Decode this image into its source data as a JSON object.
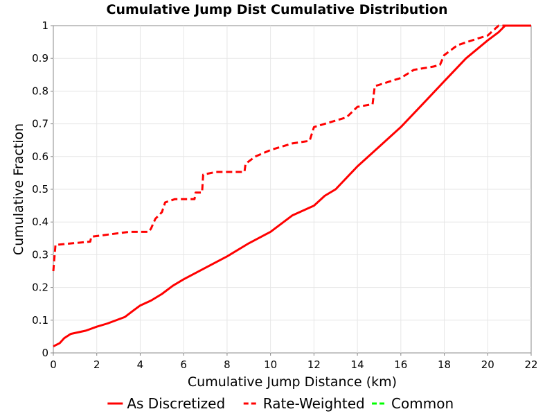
{
  "chart_data": {
    "type": "line",
    "title": "Cumulative Jump Dist Cumulative Distribution",
    "xlabel": "Cumulative Jump Distance (km)",
    "ylabel": "Cumulative Fraction",
    "xlim": [
      0,
      22
    ],
    "ylim": [
      0,
      1
    ],
    "x_ticks": [
      "0",
      "2",
      "4",
      "6",
      "8",
      "10",
      "12",
      "14",
      "16",
      "18",
      "20",
      "22"
    ],
    "y_ticks": [
      "0",
      "0.1",
      "0.2",
      "0.3",
      "0.4",
      "0.5",
      "0.6",
      "0.7",
      "0.8",
      "0.9",
      "1"
    ],
    "grid": true,
    "legend_position": "bottom",
    "series": [
      {
        "name": "As Discretized",
        "color": "#ff0000",
        "dash": "solid",
        "points": [
          [
            0,
            0.02
          ],
          [
            0.3,
            0.03
          ],
          [
            0.5,
            0.045
          ],
          [
            0.8,
            0.058
          ],
          [
            1.5,
            0.068
          ],
          [
            2,
            0.08
          ],
          [
            2.5,
            0.09
          ],
          [
            3.3,
            0.11
          ],
          [
            3.7,
            0.13
          ],
          [
            4,
            0.145
          ],
          [
            4.5,
            0.16
          ],
          [
            5,
            0.18
          ],
          [
            5.5,
            0.205
          ],
          [
            6,
            0.225
          ],
          [
            7,
            0.26
          ],
          [
            8,
            0.295
          ],
          [
            9,
            0.335
          ],
          [
            10,
            0.37
          ],
          [
            11,
            0.42
          ],
          [
            12,
            0.45
          ],
          [
            12.5,
            0.48
          ],
          [
            13,
            0.5
          ],
          [
            14,
            0.57
          ],
          [
            15,
            0.63
          ],
          [
            16,
            0.69
          ],
          [
            17,
            0.76
          ],
          [
            18,
            0.83
          ],
          [
            19,
            0.9
          ],
          [
            20,
            0.955
          ],
          [
            20.5,
            0.98
          ],
          [
            20.8,
            1.0
          ],
          [
            22,
            1.0
          ]
        ]
      },
      {
        "name": "Rate-Weighted",
        "color": "#ff0000",
        "dash": "dashed",
        "points": [
          [
            0,
            0.25
          ],
          [
            0.1,
            0.33
          ],
          [
            1.7,
            0.34
          ],
          [
            1.75,
            0.355
          ],
          [
            3.5,
            0.37
          ],
          [
            4.4,
            0.37
          ],
          [
            4.5,
            0.38
          ],
          [
            4.7,
            0.41
          ],
          [
            5,
            0.43
          ],
          [
            5.15,
            0.46
          ],
          [
            5.6,
            0.47
          ],
          [
            6.5,
            0.47
          ],
          [
            6.55,
            0.49
          ],
          [
            6.85,
            0.49
          ],
          [
            6.9,
            0.545
          ],
          [
            7.5,
            0.553
          ],
          [
            8.8,
            0.553
          ],
          [
            8.85,
            0.578
          ],
          [
            9.3,
            0.6
          ],
          [
            10,
            0.62
          ],
          [
            11,
            0.64
          ],
          [
            11.8,
            0.648
          ],
          [
            12,
            0.69
          ],
          [
            12.5,
            0.7
          ],
          [
            13.5,
            0.72
          ],
          [
            14,
            0.752
          ],
          [
            14.7,
            0.76
          ],
          [
            14.8,
            0.815
          ],
          [
            16,
            0.84
          ],
          [
            16.6,
            0.865
          ],
          [
            17.5,
            0.875
          ],
          [
            17.8,
            0.88
          ],
          [
            18,
            0.91
          ],
          [
            18.6,
            0.94
          ],
          [
            19.5,
            0.96
          ],
          [
            20,
            0.97
          ],
          [
            20.5,
            1.0
          ],
          [
            22,
            1.0
          ]
        ]
      },
      {
        "name": "Common",
        "color": "#00ff00",
        "dash": "dashed",
        "points": []
      }
    ]
  }
}
